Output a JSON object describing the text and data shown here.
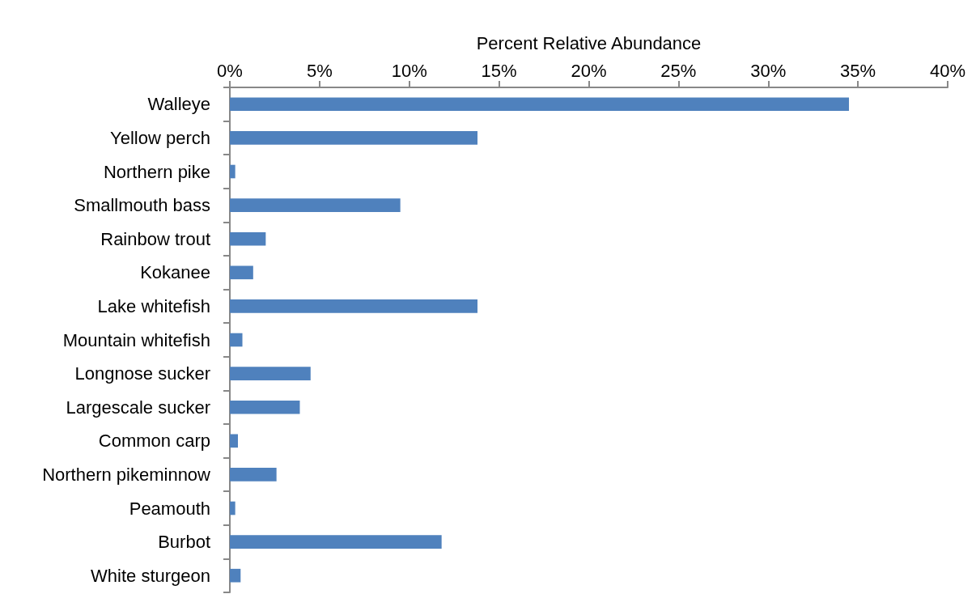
{
  "chart_data": {
    "type": "bar",
    "orientation": "horizontal",
    "xlabel": "Percent Relative Abundance",
    "categories": [
      "Walleye",
      "Yellow perch",
      "Northern pike",
      "Smallmouth bass",
      "Rainbow trout",
      "Kokanee",
      "Lake whitefish",
      "Mountain whitefish",
      "Longnose sucker",
      "Largescale sucker",
      "Common carp",
      "Northern pikeminnow",
      "Peamouth",
      "Burbot",
      "White sturgeon"
    ],
    "values": [
      34.5,
      13.8,
      0.3,
      9.5,
      2.0,
      1.3,
      13.8,
      0.7,
      4.5,
      3.9,
      0.45,
      2.6,
      0.3,
      11.8,
      0.6
    ],
    "color": "#4f81bd",
    "xlim": [
      0,
      40
    ],
    "xticks": [
      {
        "value": 0,
        "label": "0%"
      },
      {
        "value": 5,
        "label": "5%"
      },
      {
        "value": 10,
        "label": "10%"
      },
      {
        "value": 15,
        "label": "15%"
      },
      {
        "value": 20,
        "label": "20%"
      },
      {
        "value": 25,
        "label": "25%"
      },
      {
        "value": 30,
        "label": "30%"
      },
      {
        "value": 35,
        "label": "35%"
      },
      {
        "value": 40,
        "label": "40%"
      }
    ],
    "grid": false
  }
}
